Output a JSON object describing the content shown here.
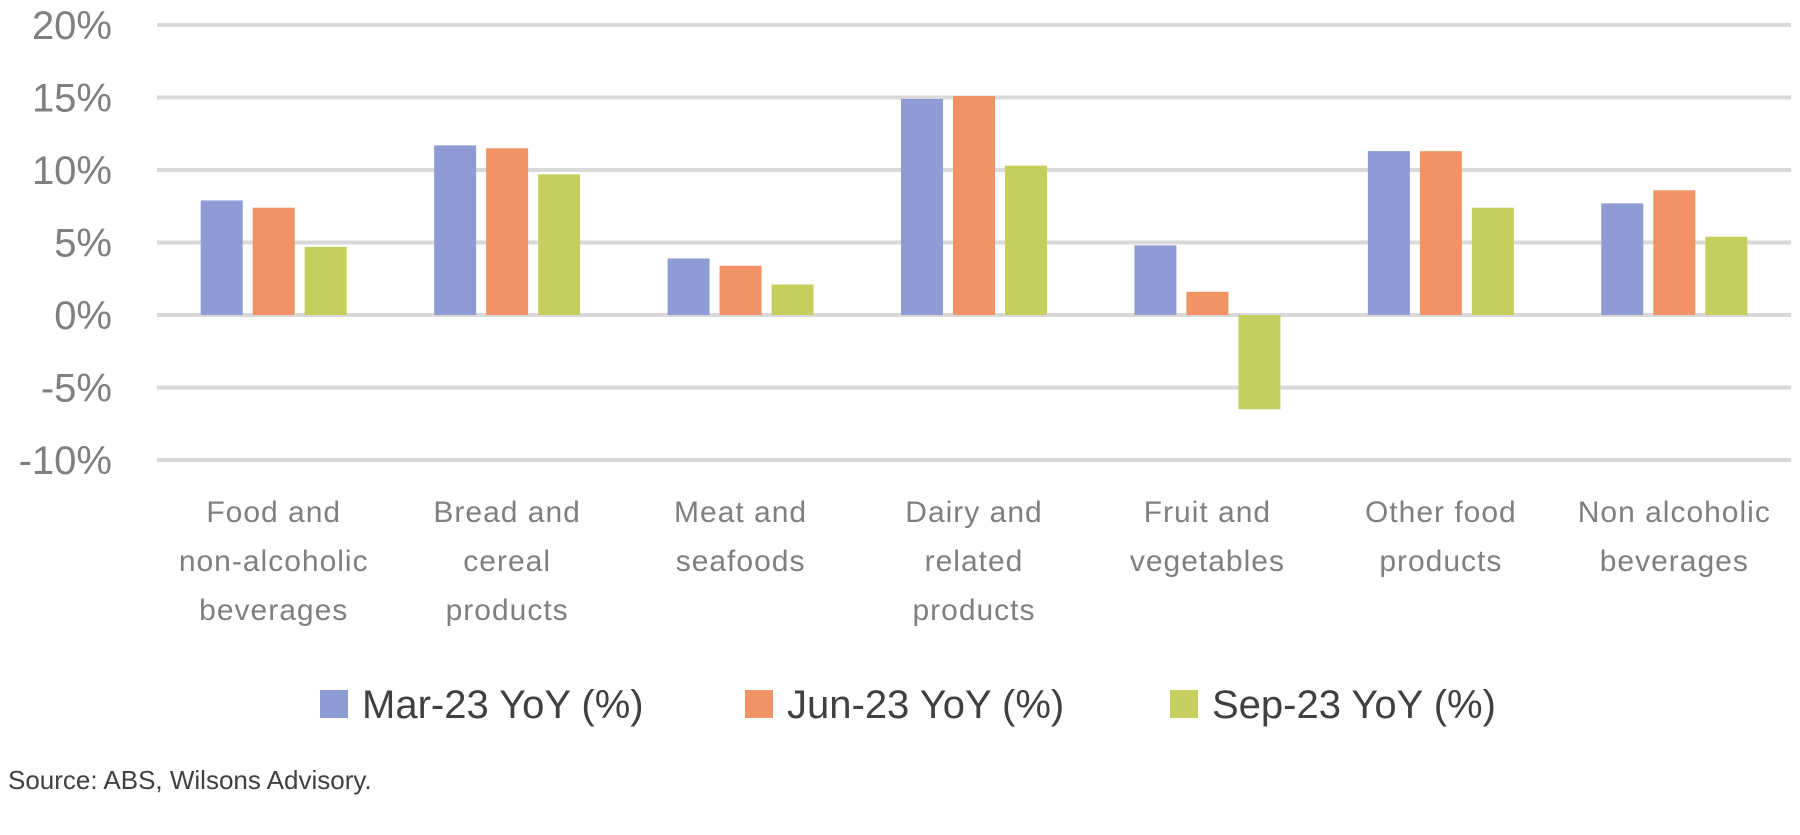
{
  "chart_data": {
    "type": "bar",
    "title": "",
    "xlabel": "",
    "ylabel": "",
    "ylim": [
      -10,
      20
    ],
    "yticks": [
      20,
      15,
      10,
      5,
      0,
      -5,
      -10
    ],
    "ytick_labels": [
      "20%",
      "15%",
      "10%",
      "5%",
      "0%",
      "-5%",
      "-10%"
    ],
    "grid": true,
    "legend_position": "bottom",
    "categories": [
      [
        "Food and",
        "non-alcoholic",
        "beverages"
      ],
      [
        "Bread and",
        "cereal",
        "products"
      ],
      [
        "Meat and",
        "seafoods"
      ],
      [
        "Dairy and",
        "related",
        "products"
      ],
      [
        "Fruit and",
        "vegetables"
      ],
      [
        "Other food",
        "products"
      ],
      [
        "Non alcoholic",
        "beverages"
      ]
    ],
    "series": [
      {
        "name": "Mar-23 YoY (%)",
        "color": "#8E9BD4",
        "values": [
          7.9,
          11.7,
          3.9,
          14.9,
          4.8,
          11.3,
          7.7
        ]
      },
      {
        "name": "Jun-23 YoY (%)",
        "color": "#F29366",
        "values": [
          7.4,
          11.5,
          3.4,
          15.1,
          1.6,
          11.3,
          8.6
        ]
      },
      {
        "name": "Sep-23 YoY (%)",
        "color": "#C6CE5D",
        "values": [
          4.7,
          9.7,
          2.1,
          10.3,
          -6.5,
          7.4,
          5.4
        ]
      }
    ]
  },
  "source": "Source: ABS, Wilsons Advisory."
}
